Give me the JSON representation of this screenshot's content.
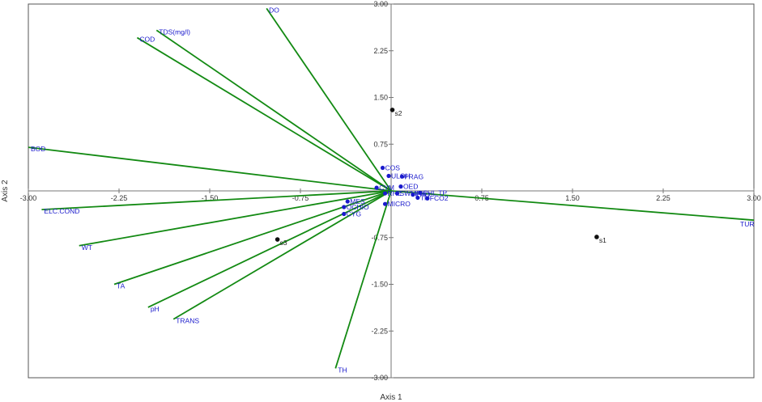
{
  "chart_data": {
    "type": "scatter",
    "subtype": "biplot",
    "xlabel": "Axis 1",
    "ylabel": "Axis 2",
    "xlim": [
      -3.0,
      3.0
    ],
    "ylim": [
      -3.0,
      3.0
    ],
    "x_ticks": [
      -3.0,
      -2.25,
      -1.5,
      -0.75,
      0.75,
      1.5,
      2.25,
      3.0
    ],
    "y_ticks": [
      3.0,
      2.25,
      1.5,
      0.75,
      -0.75,
      -1.5,
      -2.25,
      -3.0
    ],
    "x_tick_labels": [
      "-3.00",
      "-2.25",
      "-1.50",
      "-0.75",
      "0.75",
      "1.50",
      "2.25",
      "3.00"
    ],
    "y_tick_labels": [
      "3.00",
      "2.25",
      "1.50",
      "0.75",
      "-0.75",
      "-1.50",
      "-2.25",
      "-3.00"
    ],
    "grid": false,
    "colors": {
      "vector": "#138a13",
      "variable": "#1a1acc",
      "site": "#111111",
      "axes": "#555555"
    },
    "vectors": [
      {
        "label": "DO",
        "x": -1.03,
        "y": 2.93
      },
      {
        "label": "TDS(mg/l)",
        "x": -1.94,
        "y": 2.58
      },
      {
        "label": "COD",
        "x": -2.1,
        "y": 2.46
      },
      {
        "label": "BOD",
        "x": -3.0,
        "y": 0.7
      },
      {
        "label": "ELC.COND",
        "x": -2.89,
        "y": -0.3
      },
      {
        "label": "WT",
        "x": -2.58,
        "y": -0.88
      },
      {
        "label": "TA",
        "x": -2.29,
        "y": -1.5
      },
      {
        "label": "pH",
        "x": -2.01,
        "y": -1.87
      },
      {
        "label": "TRANS",
        "x": -1.8,
        "y": -2.06
      },
      {
        "label": "TH",
        "x": -0.46,
        "y": -2.85
      },
      {
        "label": "TUR",
        "x": 3.0,
        "y": -0.47
      }
    ],
    "variables": [
      {
        "label": "COS",
        "x": -0.07,
        "y": 0.37
      },
      {
        "label": "FRAG",
        "x": 0.09,
        "y": 0.23
      },
      {
        "label": "ULOH",
        "x": -0.02,
        "y": 0.24
      },
      {
        "label": "OED",
        "x": 0.08,
        "y": 0.07
      },
      {
        "label": "CHL.TP",
        "x": 0.24,
        "y": -0.03
      },
      {
        "label": "CYM",
        "x": -0.12,
        "y": 0.05
      },
      {
        "label": "TN",
        "x": 0.22,
        "y": -0.11
      },
      {
        "label": "FCO2",
        "x": 0.3,
        "y": -0.12
      },
      {
        "label": "PHO",
        "x": 0.18,
        "y": -0.06
      },
      {
        "label": "SWMPH",
        "x": 0.05,
        "y": -0.04
      },
      {
        "label": "RHE",
        "x": -0.05,
        "y": -0.04
      },
      {
        "label": "MICRO",
        "x": -0.05,
        "y": -0.21
      },
      {
        "label": "MES",
        "x": -0.36,
        "y": -0.17
      },
      {
        "label": "OCHIO",
        "x": -0.39,
        "y": -0.26
      },
      {
        "label": "CYG",
        "x": -0.39,
        "y": -0.37
      }
    ],
    "sites": [
      {
        "label": "s1",
        "x": 1.7,
        "y": -0.74
      },
      {
        "label": "s2",
        "x": 0.01,
        "y": 1.3
      },
      {
        "label": "s3",
        "x": -0.94,
        "y": -0.78
      }
    ]
  }
}
